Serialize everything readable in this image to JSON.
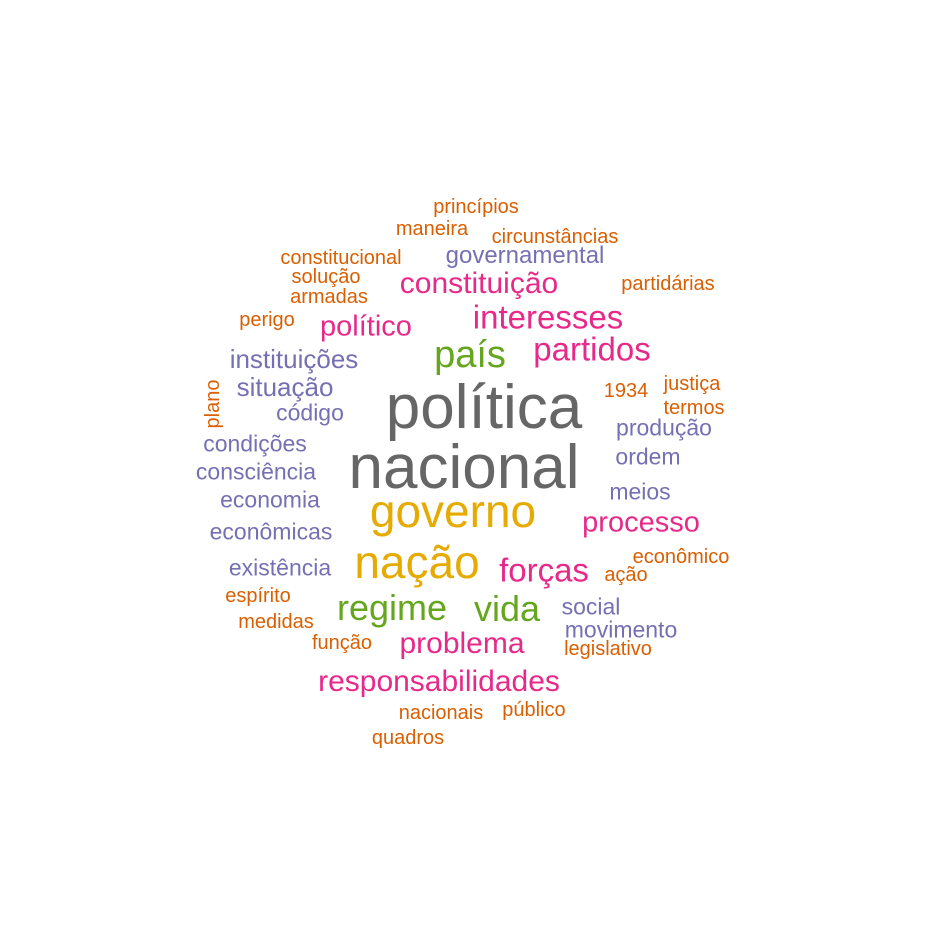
{
  "palette": {
    "gray": "#666666",
    "gold": "#e6ab02",
    "green": "#66a61e",
    "pink": "#e7298a",
    "purple": "#7570b3",
    "orange": "#d95f02"
  },
  "words": [
    {
      "id": "politica",
      "text": "política",
      "color": "gray"
    },
    {
      "id": "nacional",
      "text": "nacional",
      "color": "gray"
    },
    {
      "id": "governo",
      "text": "governo",
      "color": "gold"
    },
    {
      "id": "nacao",
      "text": "nação",
      "color": "gold"
    },
    {
      "id": "pais",
      "text": "país",
      "color": "green"
    },
    {
      "id": "regime",
      "text": "regime",
      "color": "green"
    },
    {
      "id": "vida",
      "text": "vida",
      "color": "green"
    },
    {
      "id": "interesses",
      "text": "interesses",
      "color": "pink"
    },
    {
      "id": "partidos",
      "text": "partidos",
      "color": "pink"
    },
    {
      "id": "constituicao",
      "text": "constituição",
      "color": "pink"
    },
    {
      "id": "politico",
      "text": "político",
      "color": "pink"
    },
    {
      "id": "processo",
      "text": "processo",
      "color": "pink"
    },
    {
      "id": "forcas",
      "text": "forças",
      "color": "pink"
    },
    {
      "id": "problema",
      "text": "problema",
      "color": "pink"
    },
    {
      "id": "responsabilidades",
      "text": "responsabilidades",
      "color": "pink"
    },
    {
      "id": "instituicoes",
      "text": "instituições",
      "color": "purple"
    },
    {
      "id": "situacao",
      "text": "situação",
      "color": "purple"
    },
    {
      "id": "governamental",
      "text": "governamental",
      "color": "purple"
    },
    {
      "id": "codigo",
      "text": "código",
      "color": "purple"
    },
    {
      "id": "condicoes",
      "text": "condições",
      "color": "purple"
    },
    {
      "id": "consciencia",
      "text": "consciência",
      "color": "purple"
    },
    {
      "id": "economia",
      "text": "economia",
      "color": "purple"
    },
    {
      "id": "economicas",
      "text": "econômicas",
      "color": "purple"
    },
    {
      "id": "existencia",
      "text": "existência",
      "color": "purple"
    },
    {
      "id": "producao",
      "text": "produção",
      "color": "purple"
    },
    {
      "id": "ordem",
      "text": "ordem",
      "color": "purple"
    },
    {
      "id": "meios",
      "text": "meios",
      "color": "purple"
    },
    {
      "id": "social",
      "text": "social",
      "color": "purple"
    },
    {
      "id": "movimento",
      "text": "movimento",
      "color": "purple"
    },
    {
      "id": "principios",
      "text": "princípios",
      "color": "orange"
    },
    {
      "id": "maneira",
      "text": "maneira",
      "color": "orange"
    },
    {
      "id": "circunstancias",
      "text": "circunstâncias",
      "color": "orange"
    },
    {
      "id": "constitucional",
      "text": "constitucional",
      "color": "orange"
    },
    {
      "id": "solucao",
      "text": "solução",
      "color": "orange"
    },
    {
      "id": "armadas",
      "text": "armadas",
      "color": "orange"
    },
    {
      "id": "partidarias",
      "text": "partidárias",
      "color": "orange"
    },
    {
      "id": "perigo",
      "text": "perigo",
      "color": "orange"
    },
    {
      "id": "plano",
      "text": "plano",
      "color": "orange"
    },
    {
      "id": "ano1934",
      "text": "1934",
      "color": "orange"
    },
    {
      "id": "justica",
      "text": "justiça",
      "color": "orange"
    },
    {
      "id": "termos",
      "text": "termos",
      "color": "orange"
    },
    {
      "id": "economico",
      "text": "econômico",
      "color": "orange"
    },
    {
      "id": "acao",
      "text": "ação",
      "color": "orange"
    },
    {
      "id": "espirito",
      "text": "espírito",
      "color": "orange"
    },
    {
      "id": "medidas",
      "text": "medidas",
      "color": "orange"
    },
    {
      "id": "funcao",
      "text": "função",
      "color": "orange"
    },
    {
      "id": "legislativo",
      "text": "legislativo",
      "color": "orange"
    },
    {
      "id": "nacionais",
      "text": "nacionais",
      "color": "orange"
    },
    {
      "id": "publico",
      "text": "público",
      "color": "orange"
    },
    {
      "id": "quadros",
      "text": "quadros",
      "color": "orange"
    }
  ]
}
